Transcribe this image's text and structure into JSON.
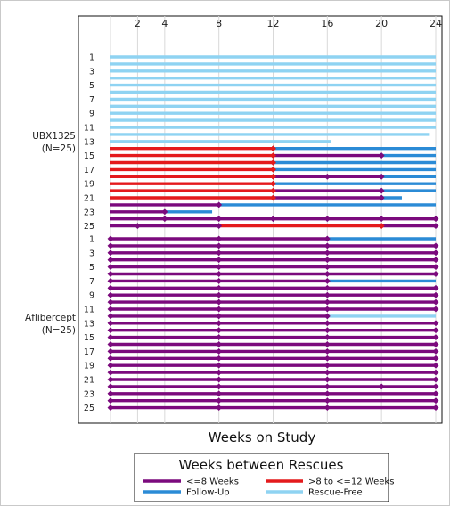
{
  "chart_data": {
    "type": "swimmer",
    "xlabel": "Weeks on Study",
    "xlim": [
      0,
      24
    ],
    "x_ticks": [
      2,
      4,
      8,
      12,
      16,
      20,
      24
    ],
    "colors": {
      "le8": "#7b0a7d",
      "gt8": "#e41a1c",
      "follow": "#2b8bd6",
      "free": "#8fd3f2"
    },
    "legend": {
      "title": "Weeks between Rescues",
      "items": [
        {
          "key": "le8",
          "label": "<=8 Weeks"
        },
        {
          "key": "gt8",
          "label": ">8 to <=12 Weeks"
        },
        {
          "key": "follow",
          "label": "Follow-Up"
        },
        {
          "key": "free",
          "label": "Rescue-Free"
        }
      ]
    },
    "groups": [
      {
        "label_line1": "UBX1325",
        "label_line2": "(N=25)",
        "tick_labels": [
          "1",
          "3",
          "5",
          "7",
          "9",
          "11",
          "13",
          "15",
          "17",
          "19",
          "21",
          "23",
          "25"
        ],
        "subjects": [
          {
            "id": 1,
            "segments": [
              {
                "c": "free",
                "s": 0,
                "e": 24
              }
            ],
            "rescues": []
          },
          {
            "id": 2,
            "segments": [
              {
                "c": "free",
                "s": 0,
                "e": 24
              }
            ],
            "rescues": []
          },
          {
            "id": 3,
            "segments": [
              {
                "c": "free",
                "s": 0,
                "e": 24
              }
            ],
            "rescues": []
          },
          {
            "id": 4,
            "segments": [
              {
                "c": "free",
                "s": 0,
                "e": 24
              }
            ],
            "rescues": []
          },
          {
            "id": 5,
            "segments": [
              {
                "c": "free",
                "s": 0,
                "e": 24
              }
            ],
            "rescues": []
          },
          {
            "id": 6,
            "segments": [
              {
                "c": "free",
                "s": 0,
                "e": 24
              }
            ],
            "rescues": []
          },
          {
            "id": 7,
            "segments": [
              {
                "c": "free",
                "s": 0,
                "e": 24
              }
            ],
            "rescues": []
          },
          {
            "id": 8,
            "segments": [
              {
                "c": "free",
                "s": 0,
                "e": 24
              }
            ],
            "rescues": []
          },
          {
            "id": 9,
            "segments": [
              {
                "c": "free",
                "s": 0,
                "e": 24
              }
            ],
            "rescues": []
          },
          {
            "id": 10,
            "segments": [
              {
                "c": "free",
                "s": 0,
                "e": 24
              }
            ],
            "rescues": []
          },
          {
            "id": 11,
            "segments": [
              {
                "c": "free",
                "s": 0,
                "e": 24
              }
            ],
            "rescues": []
          },
          {
            "id": 12,
            "segments": [
              {
                "c": "free",
                "s": 0,
                "e": 23.5
              }
            ],
            "rescues": []
          },
          {
            "id": 13,
            "segments": [
              {
                "c": "free",
                "s": 0,
                "e": 16.3
              }
            ],
            "rescues": []
          },
          {
            "id": 14,
            "segments": [
              {
                "c": "gt8",
                "s": 0,
                "e": 12
              },
              {
                "c": "follow",
                "s": 12,
                "e": 24
              }
            ],
            "rescues": [
              12
            ]
          },
          {
            "id": 15,
            "segments": [
              {
                "c": "gt8",
                "s": 0,
                "e": 12
              },
              {
                "c": "le8",
                "s": 12,
                "e": 20
              },
              {
                "c": "follow",
                "s": 20,
                "e": 24
              }
            ],
            "rescues": [
              12,
              20
            ]
          },
          {
            "id": 16,
            "segments": [
              {
                "c": "gt8",
                "s": 0,
                "e": 12
              },
              {
                "c": "follow",
                "s": 12,
                "e": 24
              }
            ],
            "rescues": [
              12
            ]
          },
          {
            "id": 17,
            "segments": [
              {
                "c": "gt8",
                "s": 0,
                "e": 12
              },
              {
                "c": "follow",
                "s": 12,
                "e": 24
              }
            ],
            "rescues": [
              12
            ]
          },
          {
            "id": 18,
            "segments": [
              {
                "c": "gt8",
                "s": 0,
                "e": 12
              },
              {
                "c": "le8",
                "s": 12,
                "e": 16
              },
              {
                "c": "le8",
                "s": 16,
                "e": 20
              },
              {
                "c": "follow",
                "s": 20,
                "e": 24
              }
            ],
            "rescues": [
              12,
              16,
              20
            ]
          },
          {
            "id": 19,
            "segments": [
              {
                "c": "gt8",
                "s": 0,
                "e": 12
              },
              {
                "c": "follow",
                "s": 12,
                "e": 24
              }
            ],
            "rescues": [
              12
            ]
          },
          {
            "id": 20,
            "segments": [
              {
                "c": "gt8",
                "s": 0,
                "e": 12
              },
              {
                "c": "le8",
                "s": 12,
                "e": 20
              },
              {
                "c": "follow",
                "s": 20,
                "e": 24
              }
            ],
            "rescues": [
              12,
              20
            ]
          },
          {
            "id": 21,
            "segments": [
              {
                "c": "gt8",
                "s": 0,
                "e": 12
              },
              {
                "c": "le8",
                "s": 12,
                "e": 20
              },
              {
                "c": "follow",
                "s": 20,
                "e": 21.5
              }
            ],
            "rescues": [
              12,
              20
            ]
          },
          {
            "id": 22,
            "segments": [
              {
                "c": "le8",
                "s": 0,
                "e": 8
              },
              {
                "c": "follow",
                "s": 8,
                "e": 24
              }
            ],
            "rescues": [
              8
            ]
          },
          {
            "id": 23,
            "segments": [
              {
                "c": "le8",
                "s": 0,
                "e": 4
              },
              {
                "c": "follow",
                "s": 4,
                "e": 7.5
              }
            ],
            "rescues": [
              4
            ]
          },
          {
            "id": 24,
            "segments": [
              {
                "c": "le8",
                "s": 0,
                "e": 4
              },
              {
                "c": "le8",
                "s": 4,
                "e": 8
              },
              {
                "c": "le8",
                "s": 8,
                "e": 12
              },
              {
                "c": "le8",
                "s": 12,
                "e": 16
              },
              {
                "c": "le8",
                "s": 16,
                "e": 20
              },
              {
                "c": "le8",
                "s": 20,
                "e": 24
              }
            ],
            "rescues": [
              4,
              8,
              12,
              16,
              20,
              24
            ]
          },
          {
            "id": 25,
            "segments": [
              {
                "c": "le8",
                "s": 0,
                "e": 8
              },
              {
                "c": "gt8",
                "s": 8,
                "e": 20
              },
              {
                "c": "le8",
                "s": 20,
                "e": 24
              }
            ],
            "rescues": [
              2,
              8,
              20,
              24
            ]
          }
        ]
      },
      {
        "label_line1": "Aflibercept",
        "label_line2": "(N=25)",
        "tick_labels": [
          "1",
          "3",
          "5",
          "7",
          "9",
          "11",
          "13",
          "15",
          "17",
          "19",
          "21",
          "23",
          "25"
        ],
        "subjects": [
          {
            "id": 1,
            "segments": [
              {
                "c": "le8",
                "s": 0,
                "e": 16
              },
              {
                "c": "follow",
                "s": 16,
                "e": 24
              }
            ],
            "rescues": [
              0,
              8,
              16
            ]
          },
          {
            "id": 2,
            "segments": [
              {
                "c": "le8",
                "s": 0,
                "e": 24
              }
            ],
            "rescues": [
              0,
              8,
              16,
              24
            ]
          },
          {
            "id": 3,
            "segments": [
              {
                "c": "le8",
                "s": 0,
                "e": 24
              }
            ],
            "rescues": [
              0,
              8,
              16,
              24
            ]
          },
          {
            "id": 4,
            "segments": [
              {
                "c": "le8",
                "s": 0,
                "e": 24
              }
            ],
            "rescues": [
              0,
              8,
              16,
              24
            ]
          },
          {
            "id": 5,
            "segments": [
              {
                "c": "le8",
                "s": 0,
                "e": 24
              }
            ],
            "rescues": [
              0,
              8,
              16,
              24
            ]
          },
          {
            "id": 6,
            "segments": [
              {
                "c": "le8",
                "s": 0,
                "e": 24
              }
            ],
            "rescues": [
              0,
              8,
              16,
              24
            ]
          },
          {
            "id": 7,
            "segments": [
              {
                "c": "le8",
                "s": 0,
                "e": 16
              },
              {
                "c": "follow",
                "s": 16,
                "e": 24
              }
            ],
            "rescues": [
              0,
              8,
              16
            ]
          },
          {
            "id": 8,
            "segments": [
              {
                "c": "le8",
                "s": 0,
                "e": 24
              }
            ],
            "rescues": [
              0,
              8,
              16,
              24
            ]
          },
          {
            "id": 9,
            "segments": [
              {
                "c": "le8",
                "s": 0,
                "e": 24
              }
            ],
            "rescues": [
              0,
              8,
              16,
              24
            ]
          },
          {
            "id": 10,
            "segments": [
              {
                "c": "le8",
                "s": 0,
                "e": 24
              }
            ],
            "rescues": [
              0,
              8,
              16,
              24
            ]
          },
          {
            "id": 11,
            "segments": [
              {
                "c": "le8",
                "s": 0,
                "e": 24
              }
            ],
            "rescues": [
              0,
              8,
              16,
              24
            ]
          },
          {
            "id": 12,
            "segments": [
              {
                "c": "le8",
                "s": 0,
                "e": 16
              },
              {
                "c": "free",
                "s": 16,
                "e": 24
              }
            ],
            "rescues": [
              0,
              8,
              16
            ]
          },
          {
            "id": 13,
            "segments": [
              {
                "c": "le8",
                "s": 0,
                "e": 24
              }
            ],
            "rescues": [
              0,
              8,
              16,
              24
            ]
          },
          {
            "id": 14,
            "segments": [
              {
                "c": "le8",
                "s": 0,
                "e": 24
              }
            ],
            "rescues": [
              0,
              8,
              16,
              24
            ]
          },
          {
            "id": 15,
            "segments": [
              {
                "c": "le8",
                "s": 0,
                "e": 24
              }
            ],
            "rescues": [
              0,
              8,
              16,
              24
            ]
          },
          {
            "id": 16,
            "segments": [
              {
                "c": "le8",
                "s": 0,
                "e": 24
              }
            ],
            "rescues": [
              0,
              8,
              16,
              24
            ]
          },
          {
            "id": 17,
            "segments": [
              {
                "c": "le8",
                "s": 0,
                "e": 24
              }
            ],
            "rescues": [
              0,
              8,
              16,
              24
            ]
          },
          {
            "id": 18,
            "segments": [
              {
                "c": "le8",
                "s": 0,
                "e": 24
              }
            ],
            "rescues": [
              0,
              8,
              16,
              24
            ]
          },
          {
            "id": 19,
            "segments": [
              {
                "c": "le8",
                "s": 0,
                "e": 24
              }
            ],
            "rescues": [
              0,
              8,
              16,
              24
            ]
          },
          {
            "id": 20,
            "segments": [
              {
                "c": "le8",
                "s": 0,
                "e": 24
              }
            ],
            "rescues": [
              0,
              8,
              16,
              24
            ]
          },
          {
            "id": 21,
            "segments": [
              {
                "c": "le8",
                "s": 0,
                "e": 24
              }
            ],
            "rescues": [
              0,
              8,
              16,
              24
            ]
          },
          {
            "id": 22,
            "segments": [
              {
                "c": "le8",
                "s": 0,
                "e": 24
              }
            ],
            "rescues": [
              0,
              8,
              16,
              20,
              24
            ]
          },
          {
            "id": 23,
            "segments": [
              {
                "c": "le8",
                "s": 0,
                "e": 24
              }
            ],
            "rescues": [
              0,
              8,
              16,
              24
            ]
          },
          {
            "id": 24,
            "segments": [
              {
                "c": "le8",
                "s": 0,
                "e": 24
              }
            ],
            "rescues": [
              0,
              8,
              16,
              24
            ]
          },
          {
            "id": 25,
            "segments": [
              {
                "c": "le8",
                "s": 0,
                "e": 24
              }
            ],
            "rescues": [
              0,
              8,
              16,
              24
            ]
          }
        ]
      }
    ]
  }
}
